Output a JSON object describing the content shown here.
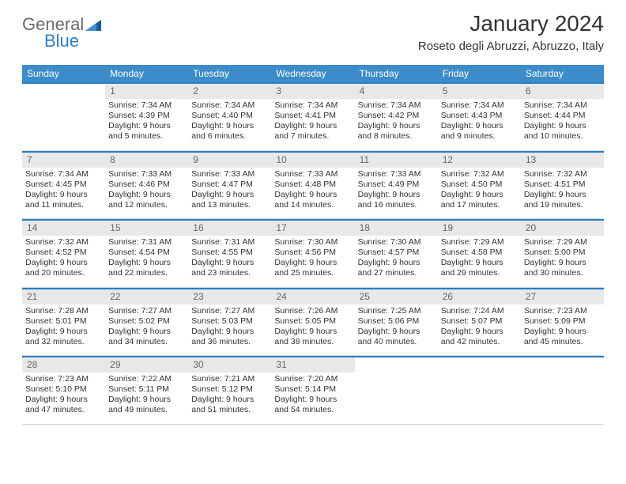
{
  "logo": {
    "part1": "General",
    "part2": "Blue"
  },
  "title": "January 2024",
  "location": "Roseto degli Abruzzi, Abruzzo, Italy",
  "colors": {
    "header_bg": "#3d8cc9",
    "week_border": "#2b7fc4",
    "daynum_bg": "#e8e8e8",
    "text": "#333333"
  },
  "dow": [
    "Sunday",
    "Monday",
    "Tuesday",
    "Wednesday",
    "Thursday",
    "Friday",
    "Saturday"
  ],
  "weeks": [
    [
      null,
      {
        "n": "1",
        "sr": "7:34 AM",
        "ss": "4:39 PM",
        "dl": "9 hours and 5 minutes."
      },
      {
        "n": "2",
        "sr": "7:34 AM",
        "ss": "4:40 PM",
        "dl": "9 hours and 6 minutes."
      },
      {
        "n": "3",
        "sr": "7:34 AM",
        "ss": "4:41 PM",
        "dl": "9 hours and 7 minutes."
      },
      {
        "n": "4",
        "sr": "7:34 AM",
        "ss": "4:42 PM",
        "dl": "9 hours and 8 minutes."
      },
      {
        "n": "5",
        "sr": "7:34 AM",
        "ss": "4:43 PM",
        "dl": "9 hours and 9 minutes."
      },
      {
        "n": "6",
        "sr": "7:34 AM",
        "ss": "4:44 PM",
        "dl": "9 hours and 10 minutes."
      }
    ],
    [
      {
        "n": "7",
        "sr": "7:34 AM",
        "ss": "4:45 PM",
        "dl": "9 hours and 11 minutes."
      },
      {
        "n": "8",
        "sr": "7:33 AM",
        "ss": "4:46 PM",
        "dl": "9 hours and 12 minutes."
      },
      {
        "n": "9",
        "sr": "7:33 AM",
        "ss": "4:47 PM",
        "dl": "9 hours and 13 minutes."
      },
      {
        "n": "10",
        "sr": "7:33 AM",
        "ss": "4:48 PM",
        "dl": "9 hours and 14 minutes."
      },
      {
        "n": "11",
        "sr": "7:33 AM",
        "ss": "4:49 PM",
        "dl": "9 hours and 16 minutes."
      },
      {
        "n": "12",
        "sr": "7:32 AM",
        "ss": "4:50 PM",
        "dl": "9 hours and 17 minutes."
      },
      {
        "n": "13",
        "sr": "7:32 AM",
        "ss": "4:51 PM",
        "dl": "9 hours and 19 minutes."
      }
    ],
    [
      {
        "n": "14",
        "sr": "7:32 AM",
        "ss": "4:52 PM",
        "dl": "9 hours and 20 minutes."
      },
      {
        "n": "15",
        "sr": "7:31 AM",
        "ss": "4:54 PM",
        "dl": "9 hours and 22 minutes."
      },
      {
        "n": "16",
        "sr": "7:31 AM",
        "ss": "4:55 PM",
        "dl": "9 hours and 23 minutes."
      },
      {
        "n": "17",
        "sr": "7:30 AM",
        "ss": "4:56 PM",
        "dl": "9 hours and 25 minutes."
      },
      {
        "n": "18",
        "sr": "7:30 AM",
        "ss": "4:57 PM",
        "dl": "9 hours and 27 minutes."
      },
      {
        "n": "19",
        "sr": "7:29 AM",
        "ss": "4:58 PM",
        "dl": "9 hours and 29 minutes."
      },
      {
        "n": "20",
        "sr": "7:29 AM",
        "ss": "5:00 PM",
        "dl": "9 hours and 30 minutes."
      }
    ],
    [
      {
        "n": "21",
        "sr": "7:28 AM",
        "ss": "5:01 PM",
        "dl": "9 hours and 32 minutes."
      },
      {
        "n": "22",
        "sr": "7:27 AM",
        "ss": "5:02 PM",
        "dl": "9 hours and 34 minutes."
      },
      {
        "n": "23",
        "sr": "7:27 AM",
        "ss": "5:03 PM",
        "dl": "9 hours and 36 minutes."
      },
      {
        "n": "24",
        "sr": "7:26 AM",
        "ss": "5:05 PM",
        "dl": "9 hours and 38 minutes."
      },
      {
        "n": "25",
        "sr": "7:25 AM",
        "ss": "5:06 PM",
        "dl": "9 hours and 40 minutes."
      },
      {
        "n": "26",
        "sr": "7:24 AM",
        "ss": "5:07 PM",
        "dl": "9 hours and 42 minutes."
      },
      {
        "n": "27",
        "sr": "7:23 AM",
        "ss": "5:09 PM",
        "dl": "9 hours and 45 minutes."
      }
    ],
    [
      {
        "n": "28",
        "sr": "7:23 AM",
        "ss": "5:10 PM",
        "dl": "9 hours and 47 minutes."
      },
      {
        "n": "29",
        "sr": "7:22 AM",
        "ss": "5:11 PM",
        "dl": "9 hours and 49 minutes."
      },
      {
        "n": "30",
        "sr": "7:21 AM",
        "ss": "5:12 PM",
        "dl": "9 hours and 51 minutes."
      },
      {
        "n": "31",
        "sr": "7:20 AM",
        "ss": "5:14 PM",
        "dl": "9 hours and 54 minutes."
      },
      null,
      null,
      null
    ]
  ],
  "labels": {
    "sunrise": "Sunrise:",
    "sunset": "Sunset:",
    "daylight": "Daylight:"
  }
}
